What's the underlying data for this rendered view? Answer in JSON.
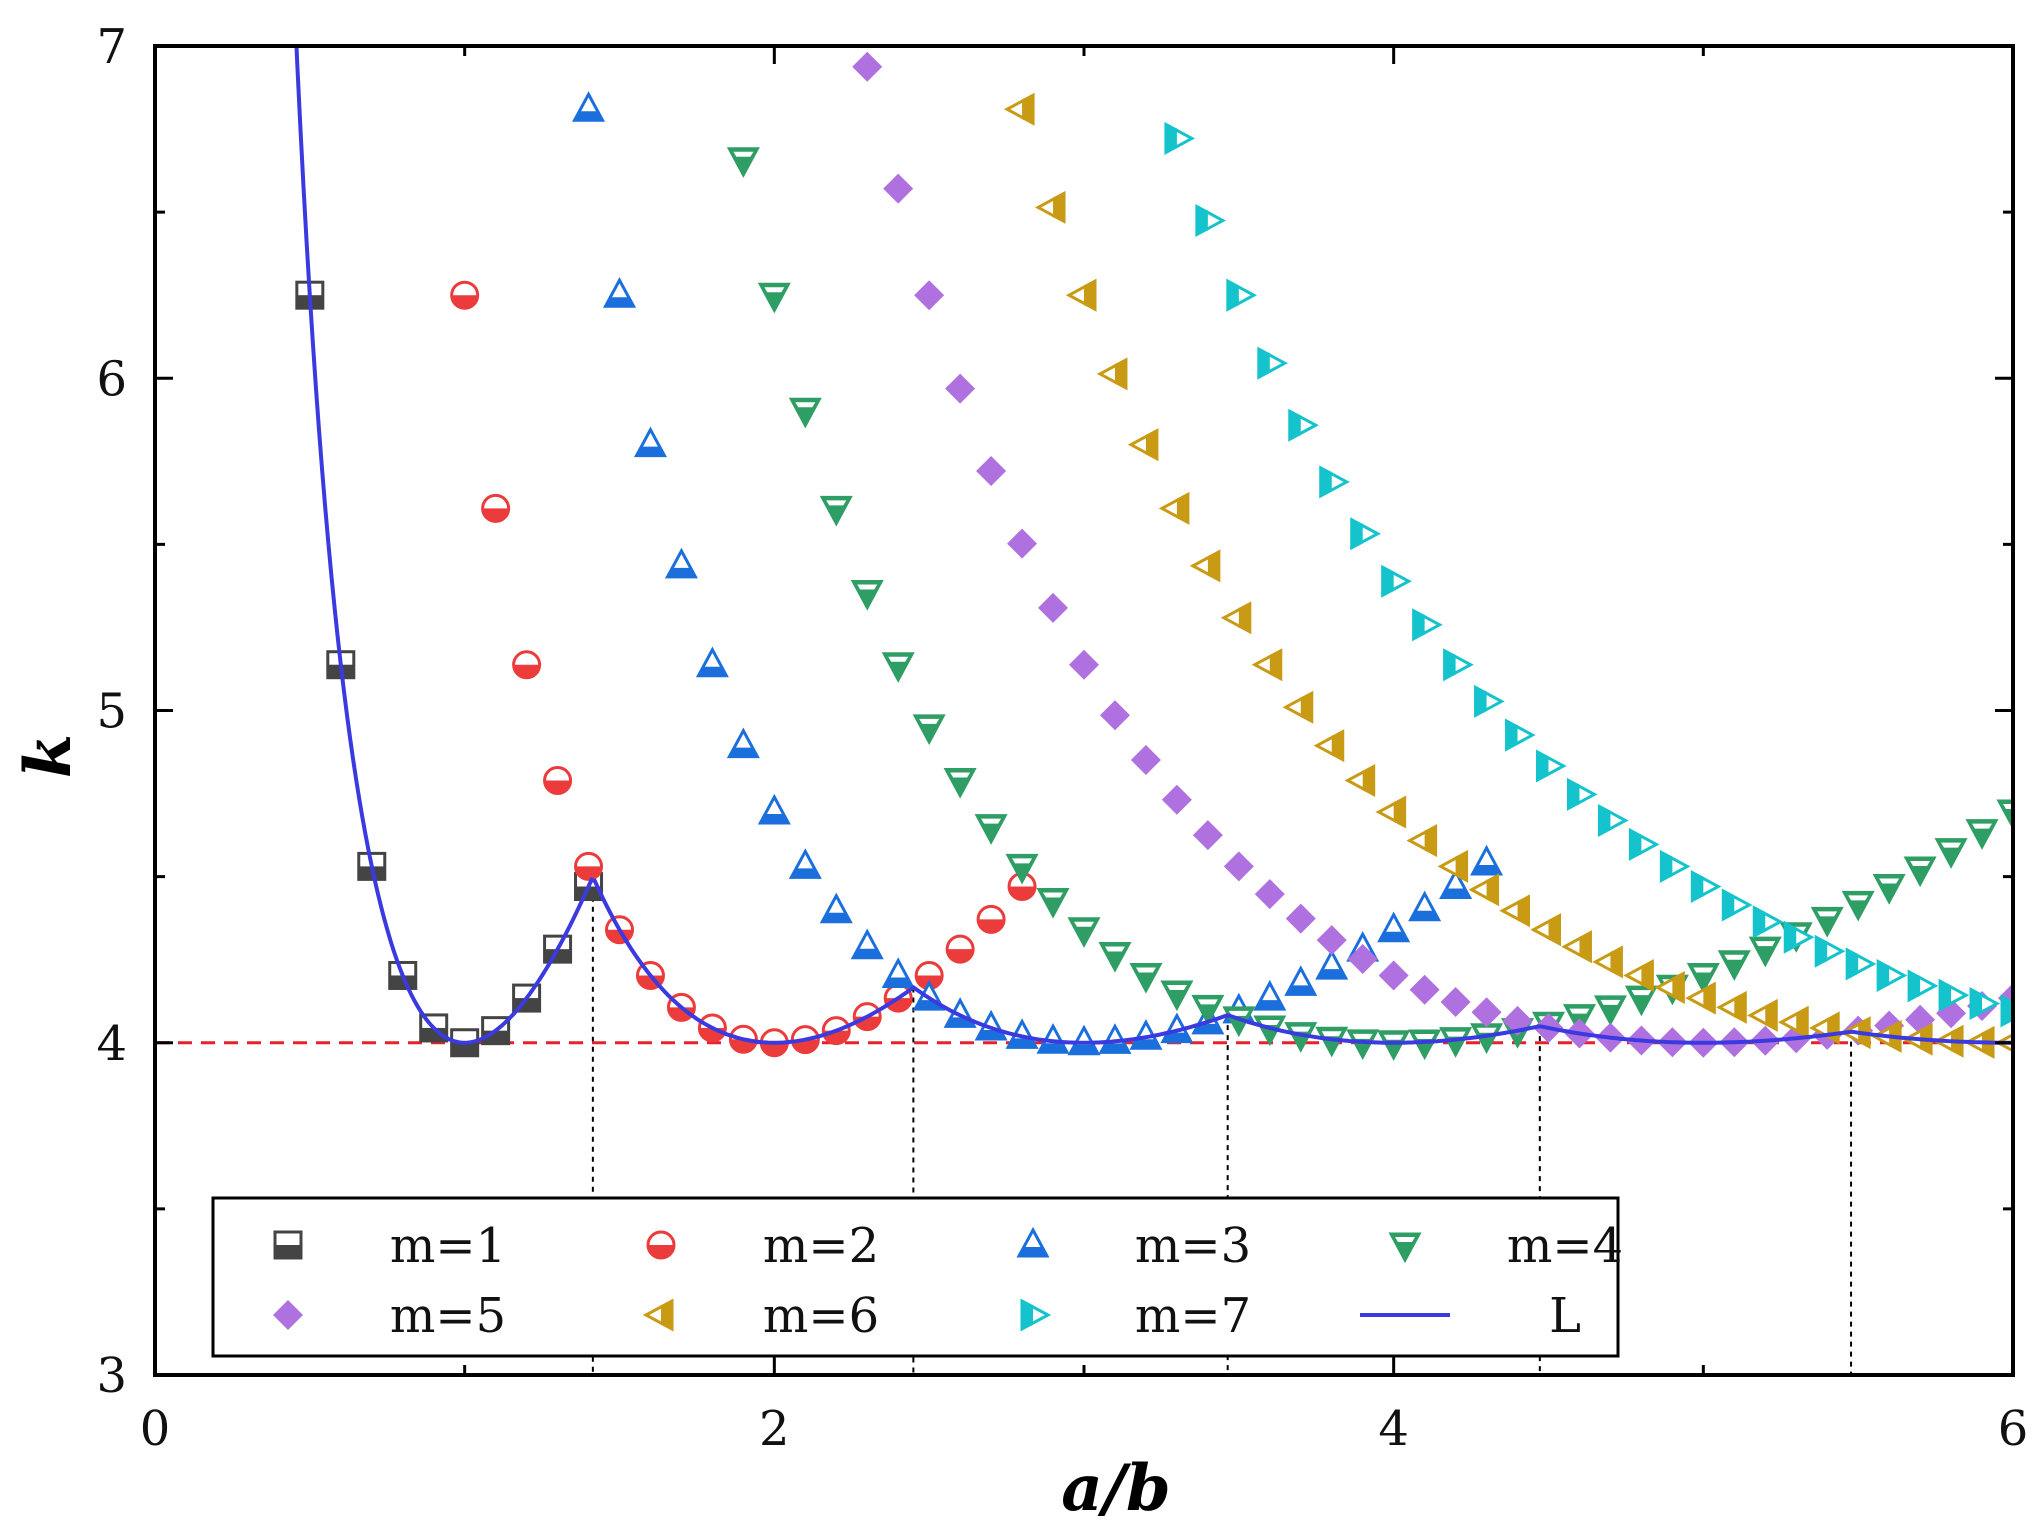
{
  "chart_data": {
    "type": "scatter",
    "xlabel": "a/b",
    "ylabel": "k",
    "xlim": [
      0,
      6
    ],
    "ylim": [
      3,
      7
    ],
    "x_ticks": [
      0,
      2,
      4,
      6
    ],
    "y_ticks": [
      3,
      4,
      5,
      6,
      7
    ],
    "reference_line": {
      "y": 4,
      "color": "#e8202a",
      "style": "dashed"
    },
    "transition_points": [
      1.414,
      2.449,
      3.464,
      4.472,
      5.477
    ],
    "legend_position": "bottom",
    "series": [
      {
        "name": "m=1",
        "marker": "square-half",
        "color": "#444444",
        "m": 1
      },
      {
        "name": "m=2",
        "marker": "circle-half",
        "color": "#ec3b3b",
        "m": 2
      },
      {
        "name": "m=3",
        "marker": "triangle-up",
        "color": "#1a6fdd",
        "m": 3
      },
      {
        "name": "m=4",
        "marker": "triangle-down",
        "color": "#2e9e64",
        "m": 4
      },
      {
        "name": "m=5",
        "marker": "diamond",
        "color": "#b071e0",
        "m": 5
      },
      {
        "name": "m=6",
        "marker": "triangle-left",
        "color": "#c99a14",
        "m": 6
      },
      {
        "name": "m=7",
        "marker": "triangle-right",
        "color": "#14c3cc",
        "m": 7
      },
      {
        "name": "L",
        "marker": "line",
        "color": "#3a3ae0"
      }
    ]
  }
}
